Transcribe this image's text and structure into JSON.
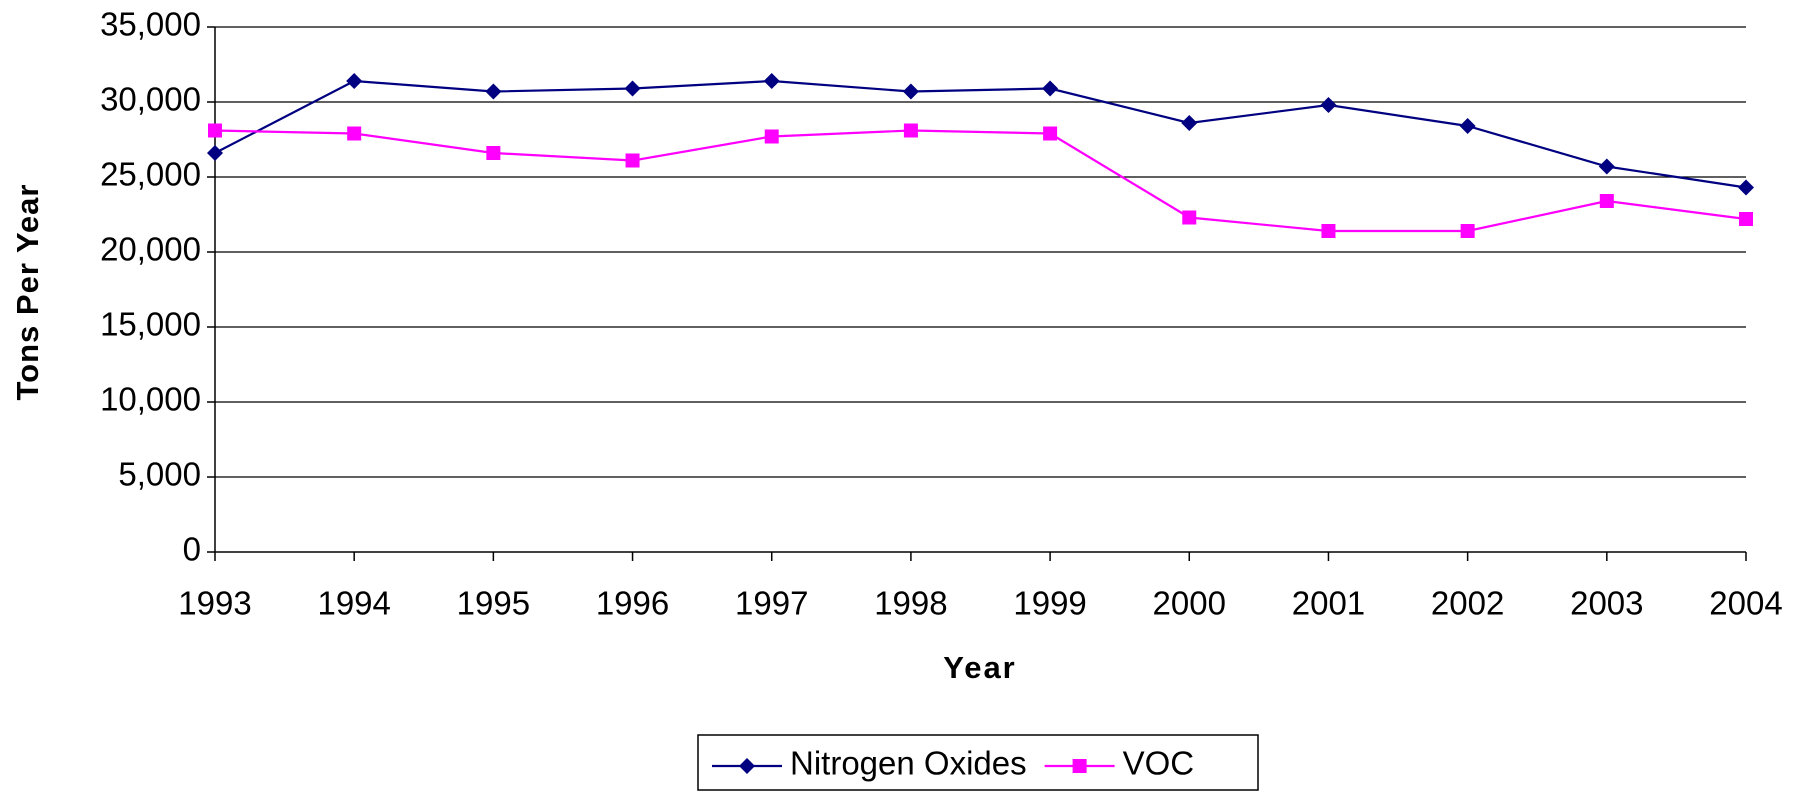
{
  "chart_data": {
    "type": "line",
    "x_label": "Year",
    "y_label": "Tons Per Year",
    "categories": [
      "1993",
      "1994",
      "1995",
      "1996",
      "1997",
      "1998",
      "1999",
      "2000",
      "2001",
      "2002",
      "2003",
      "2004"
    ],
    "series": [
      {
        "name": "Nitrogen Oxides",
        "color": "#000080",
        "marker": "diamond",
        "values": [
          26600,
          31400,
          30700,
          30900,
          31400,
          30700,
          30900,
          28600,
          29800,
          28400,
          25700,
          24300
        ]
      },
      {
        "name": "VOC",
        "color": "#ff00ff",
        "marker": "square",
        "values": [
          28100,
          27900,
          26600,
          26100,
          27700,
          28100,
          27900,
          22300,
          21400,
          21400,
          23400,
          22200
        ]
      }
    ],
    "ylim": [
      0,
      35000
    ],
    "yticks": [
      0,
      {
        "value": 5000,
        "label": "5,000"
      },
      {
        "value": 10000,
        "label": "10,000"
      },
      {
        "value": 15000,
        "label": "15,000"
      },
      {
        "value": 20000,
        "label": "20,000"
      },
      {
        "value": 25000,
        "label": "25,000"
      },
      {
        "value": 30000,
        "label": "30,000"
      },
      {
        "value": 35000,
        "label": "35,000"
      }
    ],
    "grid": true,
    "legend": "bottom"
  }
}
